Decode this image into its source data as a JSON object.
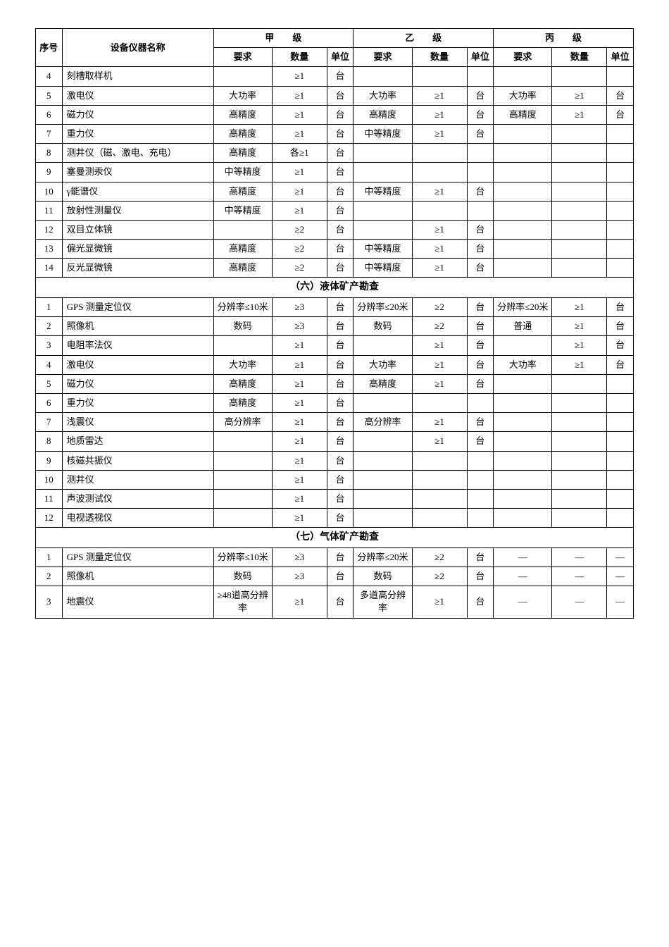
{
  "layout": {
    "font_family": "SimSun",
    "base_font_size": 13,
    "border_color": "#000000",
    "background_color": "#ffffff"
  },
  "headers": {
    "num": "序号",
    "name": "设备仪器名称",
    "grade_a": "甲　　级",
    "grade_b": "乙　　级",
    "grade_c": "丙　　级",
    "req": "要求",
    "qty": "数量",
    "unit": "单位"
  },
  "sections": [
    {
      "title": "",
      "rows": [
        {
          "num": "4",
          "name": "刻槽取样机",
          "a_req": "",
          "a_qty": "≥1",
          "a_unit": "台",
          "b_req": "",
          "b_qty": "",
          "b_unit": "",
          "c_req": "",
          "c_qty": "",
          "c_unit": ""
        },
        {
          "num": "5",
          "name": "激电仪",
          "a_req": "大功率",
          "a_qty": "≥1",
          "a_unit": "台",
          "b_req": "大功率",
          "b_qty": "≥1",
          "b_unit": "台",
          "c_req": "大功率",
          "c_qty": "≥1",
          "c_unit": "台"
        },
        {
          "num": "6",
          "name": "磁力仪",
          "a_req": "高精度",
          "a_qty": "≥1",
          "a_unit": "台",
          "b_req": "高精度",
          "b_qty": "≥1",
          "b_unit": "台",
          "c_req": "高精度",
          "c_qty": "≥1",
          "c_unit": "台"
        },
        {
          "num": "7",
          "name": "重力仪",
          "a_req": "高精度",
          "a_qty": "≥1",
          "a_unit": "台",
          "b_req": "中等精度",
          "b_qty": "≥1",
          "b_unit": "台",
          "c_req": "",
          "c_qty": "",
          "c_unit": ""
        },
        {
          "num": "8",
          "name": "测井仪（磁、激电、充电）",
          "a_req": "高精度",
          "a_qty": "各≥1",
          "a_unit": "台",
          "b_req": "",
          "b_qty": "",
          "b_unit": "",
          "c_req": "",
          "c_qty": "",
          "c_unit": ""
        },
        {
          "num": "9",
          "name": "塞曼测汞仪",
          "a_req": "中等精度",
          "a_qty": "≥1",
          "a_unit": "台",
          "b_req": "",
          "b_qty": "",
          "b_unit": "",
          "c_req": "",
          "c_qty": "",
          "c_unit": ""
        },
        {
          "num": "10",
          "name": "γ能谱仪",
          "a_req": "高精度",
          "a_qty": "≥1",
          "a_unit": "台",
          "b_req": "中等精度",
          "b_qty": "≥1",
          "b_unit": "台",
          "c_req": "",
          "c_qty": "",
          "c_unit": ""
        },
        {
          "num": "11",
          "name": "放射性测量仪",
          "a_req": "中等精度",
          "a_qty": "≥1",
          "a_unit": "台",
          "b_req": "",
          "b_qty": "",
          "b_unit": "",
          "c_req": "",
          "c_qty": "",
          "c_unit": ""
        },
        {
          "num": "12",
          "name": "双目立体镜",
          "a_req": "",
          "a_qty": "≥2",
          "a_unit": "台",
          "b_req": "",
          "b_qty": "≥1",
          "b_unit": "台",
          "c_req": "",
          "c_qty": "",
          "c_unit": ""
        },
        {
          "num": "13",
          "name": "偏光显微镜",
          "a_req": "高精度",
          "a_qty": "≥2",
          "a_unit": "台",
          "b_req": "中等精度",
          "b_qty": "≥1",
          "b_unit": "台",
          "c_req": "",
          "c_qty": "",
          "c_unit": ""
        },
        {
          "num": "14",
          "name": "反光显微镜",
          "a_req": "高精度",
          "a_qty": "≥2",
          "a_unit": "台",
          "b_req": "中等精度",
          "b_qty": "≥1",
          "b_unit": "台",
          "c_req": "",
          "c_qty": "",
          "c_unit": ""
        }
      ]
    },
    {
      "title": "（六）液体矿产勘查",
      "rows": [
        {
          "num": "1",
          "name": "GPS 测量定位仪",
          "a_req": "分辨率≤10米",
          "a_qty": "≥3",
          "a_unit": "台",
          "b_req": "分辨率≤20米",
          "b_qty": "≥2",
          "b_unit": "台",
          "c_req": "分辨率≤20米",
          "c_qty": "≥1",
          "c_unit": "台"
        },
        {
          "num": "2",
          "name": "照像机",
          "a_req": "数码",
          "a_qty": "≥3",
          "a_unit": "台",
          "b_req": "数码",
          "b_qty": "≥2",
          "b_unit": "台",
          "c_req": "普通",
          "c_qty": "≥1",
          "c_unit": "台"
        },
        {
          "num": "3",
          "name": "电阻率法仪",
          "a_req": "",
          "a_qty": "≥1",
          "a_unit": "台",
          "b_req": "",
          "b_qty": "≥1",
          "b_unit": "台",
          "c_req": "",
          "c_qty": "≥1",
          "c_unit": "台"
        },
        {
          "num": "4",
          "name": "激电仪",
          "a_req": "大功率",
          "a_qty": "≥1",
          "a_unit": "台",
          "b_req": "大功率",
          "b_qty": "≥1",
          "b_unit": "台",
          "c_req": "大功率",
          "c_qty": "≥1",
          "c_unit": "台"
        },
        {
          "num": "5",
          "name": "磁力仪",
          "a_req": "高精度",
          "a_qty": "≥1",
          "a_unit": "台",
          "b_req": "高精度",
          "b_qty": "≥1",
          "b_unit": "台",
          "c_req": "",
          "c_qty": "",
          "c_unit": ""
        },
        {
          "num": "6",
          "name": "重力仪",
          "a_req": "高精度",
          "a_qty": "≥1",
          "a_unit": "台",
          "b_req": "",
          "b_qty": "",
          "b_unit": "",
          "c_req": "",
          "c_qty": "",
          "c_unit": ""
        },
        {
          "num": "7",
          "name": "浅震仪",
          "a_req": "高分辨率",
          "a_qty": "≥1",
          "a_unit": "台",
          "b_req": "高分辨率",
          "b_qty": "≥1",
          "b_unit": "台",
          "c_req": "",
          "c_qty": "",
          "c_unit": ""
        },
        {
          "num": "8",
          "name": "地质雷达",
          "a_req": "",
          "a_qty": "≥1",
          "a_unit": "台",
          "b_req": "",
          "b_qty": "≥1",
          "b_unit": "台",
          "c_req": "",
          "c_qty": "",
          "c_unit": ""
        },
        {
          "num": "9",
          "name": "核磁共振仪",
          "a_req": "",
          "a_qty": "≥1",
          "a_unit": "台",
          "b_req": "",
          "b_qty": "",
          "b_unit": "",
          "c_req": "",
          "c_qty": "",
          "c_unit": ""
        },
        {
          "num": "10",
          "name": "测井仪",
          "a_req": "",
          "a_qty": "≥1",
          "a_unit": "台",
          "b_req": "",
          "b_qty": "",
          "b_unit": "",
          "c_req": "",
          "c_qty": "",
          "c_unit": ""
        },
        {
          "num": "11",
          "name": "声波测试仪",
          "a_req": "",
          "a_qty": "≥1",
          "a_unit": "台",
          "b_req": "",
          "b_qty": "",
          "b_unit": "",
          "c_req": "",
          "c_qty": "",
          "c_unit": ""
        },
        {
          "num": "12",
          "name": "电视透视仪",
          "a_req": "",
          "a_qty": "≥1",
          "a_unit": "台",
          "b_req": "",
          "b_qty": "",
          "b_unit": "",
          "c_req": "",
          "c_qty": "",
          "c_unit": ""
        }
      ]
    },
    {
      "title": "（七）气体矿产勘查",
      "rows": [
        {
          "num": "1",
          "name": "GPS 测量定位仪",
          "a_req": "分辨率≤10米",
          "a_qty": "≥3",
          "a_unit": "台",
          "b_req": "分辨率≤20米",
          "b_qty": "≥2",
          "b_unit": "台",
          "c_req": "—",
          "c_qty": "—",
          "c_unit": "—"
        },
        {
          "num": "2",
          "name": "照像机",
          "a_req": "数码",
          "a_qty": "≥3",
          "a_unit": "台",
          "b_req": "数码",
          "b_qty": "≥2",
          "b_unit": "台",
          "c_req": "—",
          "c_qty": "—",
          "c_unit": "—"
        },
        {
          "num": "3",
          "name": "地震仪",
          "a_req": "≥48道高分辨率",
          "a_qty": "≥1",
          "a_unit": "台",
          "b_req": "多道高分辨率",
          "b_qty": "≥1",
          "b_unit": "台",
          "c_req": "—",
          "c_qty": "—",
          "c_unit": "—"
        }
      ]
    }
  ]
}
